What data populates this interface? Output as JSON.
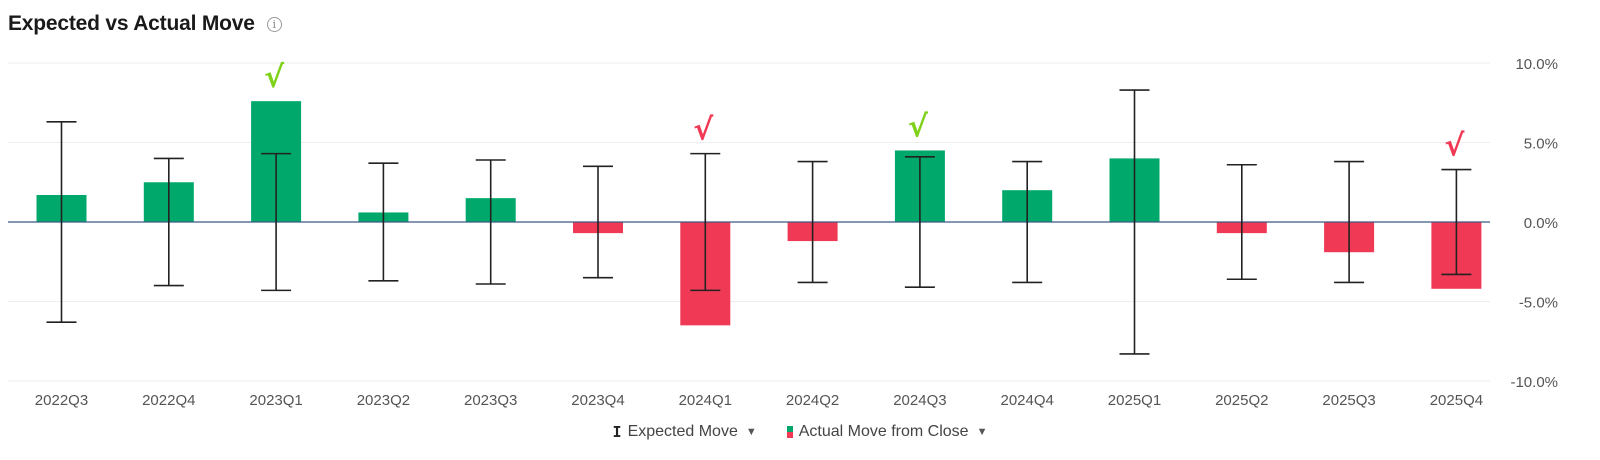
{
  "header": {
    "title": "Expected vs Actual Move",
    "info_icon": "info-icon"
  },
  "legend": {
    "expected_label": "Expected Move",
    "actual_label": "Actual Move from Close",
    "expected_icon": "error-bar-icon",
    "actual_icon": "bar-swatch-icon",
    "dropdown_icon": "caret-down-icon"
  },
  "colors": {
    "positive": "#00a86b",
    "negative": "#f03a55",
    "check_green": "#7fd11a",
    "check_red": "#f03a55",
    "errorbar": "#222222",
    "grid": "#eeeeee",
    "zero_line": "#3d5a80"
  },
  "chart_data": {
    "type": "bar",
    "title": "Expected vs Actual Move",
    "categories": [
      "2022Q3",
      "2022Q4",
      "2023Q1",
      "2023Q2",
      "2023Q3",
      "2023Q4",
      "2024Q1",
      "2024Q2",
      "2024Q3",
      "2024Q4",
      "2025Q1",
      "2025Q2",
      "2025Q3",
      "2025Q4"
    ],
    "series": [
      {
        "name": "Actual Move from Close",
        "values": [
          1.7,
          2.5,
          7.6,
          0.6,
          1.5,
          -0.7,
          -6.5,
          -1.2,
          4.5,
          2.0,
          4.0,
          -0.7,
          -1.9,
          -4.2
        ]
      },
      {
        "name": "Expected Move",
        "type": "errorbar",
        "values": [
          6.3,
          4.0,
          4.3,
          3.7,
          3.9,
          3.5,
          4.3,
          3.8,
          4.1,
          3.8,
          8.3,
          3.6,
          3.8,
          3.3
        ]
      }
    ],
    "checkmarks": [
      {
        "category": "2023Q1",
        "symbol": "√",
        "color": "green"
      },
      {
        "category": "2024Q1",
        "symbol": "√",
        "color": "red"
      },
      {
        "category": "2024Q3",
        "symbol": "√",
        "color": "green"
      },
      {
        "category": "2025Q4",
        "symbol": "√",
        "color": "red"
      }
    ],
    "ylim": [
      -10,
      10
    ],
    "yticks": [
      10,
      5,
      0,
      -5,
      -10
    ],
    "ytick_labels": [
      "10.0%",
      "5.0%",
      "0.0%",
      "-5.0%",
      "-10.0%"
    ],
    "grid": true,
    "y_axis_side": "right",
    "legend_position": "bottom-center"
  }
}
